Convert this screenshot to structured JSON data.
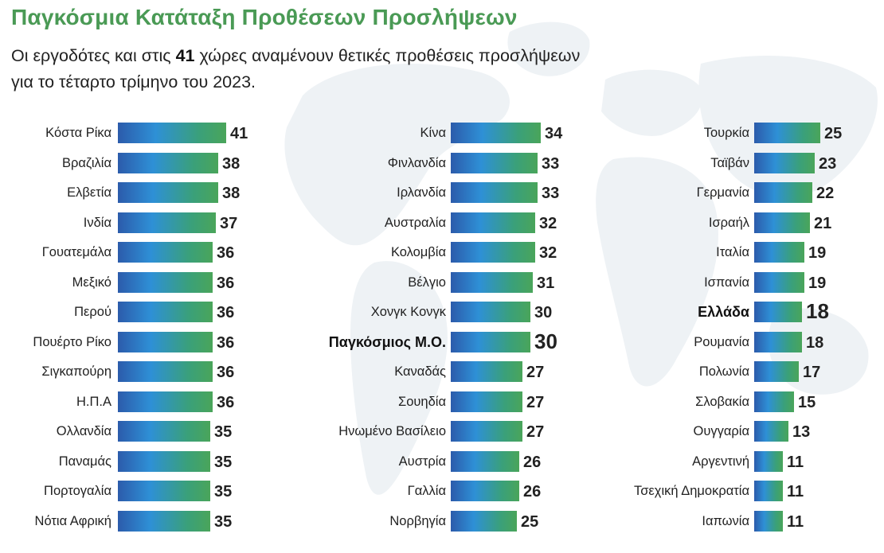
{
  "header": {
    "title": "Παγκόσμια Κατάταξη Προθέσεων Προσλήψεων",
    "subtitle_pre": "Οι εργοδότες και στις ",
    "subtitle_bold": "41",
    "subtitle_post": " χώρες αναμένουν θετικές προθέσεις προσλήψεων για το τέταρτο τρίμηνο του 2023."
  },
  "colors": {
    "title": "#4a9a55",
    "bar_start": "#2c5bab",
    "bar_mid": "#2e90d6",
    "bar_end": "#4aa55a",
    "map": "#eef2f5"
  },
  "chart_data": {
    "type": "bar",
    "orientation": "horizontal",
    "title": "Παγκόσμια Κατάταξη Προθέσεων Προσλήψεων",
    "xlabel": "",
    "ylabel": "",
    "xlim": [
      0,
      41
    ],
    "columns": [
      {
        "categories": [
          "Κόστα Ρίκα",
          "Βραζιλία",
          "Ελβετία",
          "Ινδία",
          "Γουατεμάλα",
          "Μεξικό",
          "Περού",
          "Πουέρτο Ρίκο",
          "Σιγκαπούρη",
          "Η.Π.Α",
          "Ολλανδία",
          "Παναμάς",
          "Πορτογαλία",
          "Νότια Αφρική"
        ],
        "values": [
          41,
          38,
          38,
          37,
          36,
          36,
          36,
          36,
          36,
          36,
          35,
          35,
          35,
          35
        ],
        "highlight": []
      },
      {
        "categories": [
          "Κίνα",
          "Φινλανδία",
          "Ιρλανδία",
          "Αυστραλία",
          "Κολομβία",
          "Βέλγιο",
          "Χονγκ Κονγκ",
          "Παγκόσμιος Μ.Ο.",
          "Καναδάς",
          "Σουηδία",
          "Ηνωμένο Βασίλειο",
          "Αυστρία",
          "Γαλλία",
          "Νορβηγία"
        ],
        "values": [
          34,
          33,
          33,
          32,
          32,
          31,
          30,
          30,
          27,
          27,
          27,
          26,
          26,
          25
        ],
        "highlight": [
          "Παγκόσμιος Μ.Ο."
        ]
      },
      {
        "categories": [
          "Τουρκία",
          "Ταϊβάν",
          "Γερμανία",
          "Ισραήλ",
          "Ιταλία",
          "Ισπανία",
          "Ελλάδα",
          "Ρουμανία",
          "Πολωνία",
          "Σλοβακία",
          "Ουγγαρία",
          "Αργεντινή",
          "Τσεχική Δημοκρατία",
          "Ιαπωνία"
        ],
        "values": [
          25,
          23,
          22,
          21,
          19,
          19,
          18,
          18,
          17,
          15,
          13,
          11,
          11,
          11
        ],
        "highlight": [
          "Ελλάδα"
        ]
      }
    ]
  }
}
